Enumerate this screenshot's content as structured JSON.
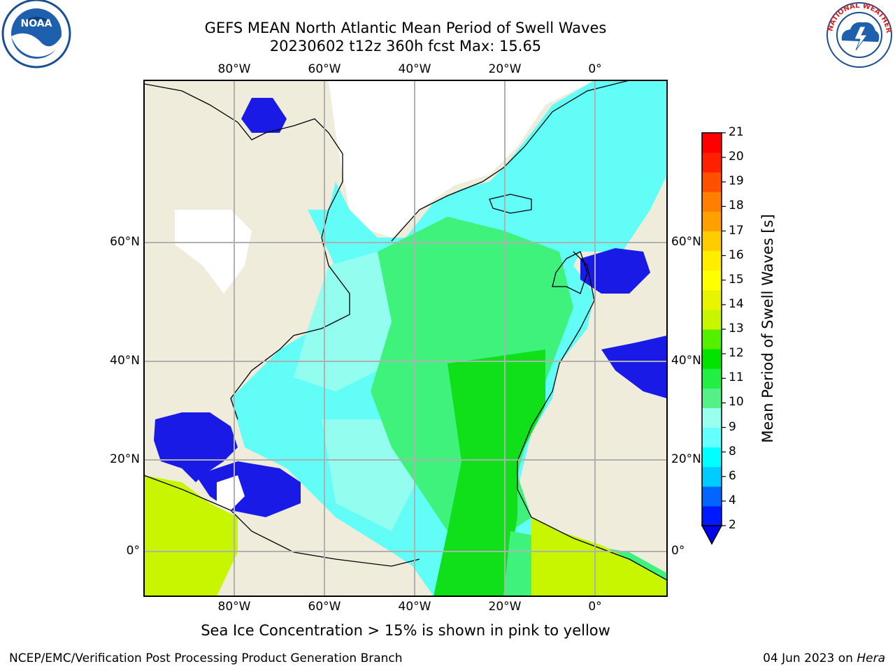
{
  "title": {
    "line1": "GEFS MEAN North Atlantic Mean Period of Swell Waves",
    "line2": "20230602 t12z 360h fcst   Max: 15.65"
  },
  "map": {
    "lon_labels": [
      {
        "value": -80,
        "text": "80°W"
      },
      {
        "value": -60,
        "text": "60°W"
      },
      {
        "value": -40,
        "text": "40°W"
      },
      {
        "value": -20,
        "text": "20°W"
      },
      {
        "value": 0,
        "text": "0°"
      }
    ],
    "lat_labels": [
      {
        "value": 60,
        "text": "60°N"
      },
      {
        "value": 40,
        "text": "40°N"
      },
      {
        "value": 20,
        "text": "20°N"
      },
      {
        "value": 0,
        "text": "0°"
      }
    ],
    "colors": {
      "land": "#efecdc",
      "ice": "#ffffff",
      "ocean_main": "#62fdf6",
      "ocean_light": "#93fdf0",
      "ocean_green": "#3ef27b",
      "ocean_bright_green": "#10e01a",
      "warm_land": "#c7f600",
      "deep_blue": "#1a1ae6"
    }
  },
  "colorbar": {
    "title": "Mean Period of Swell Waves [s]",
    "ticks": [
      "2",
      "4",
      "6",
      "8",
      "9",
      "10",
      "11",
      "12",
      "13",
      "14",
      "15",
      "16",
      "17",
      "18",
      "19",
      "20",
      "21"
    ],
    "colors": [
      "#0019ff",
      "#0066ff",
      "#00ccff",
      "#00ffff",
      "#66ffff",
      "#99ffee",
      "#55f088",
      "#22ee44",
      "#00e400",
      "#55ef00",
      "#c8f500",
      "#e8f500",
      "#ffff00",
      "#ffee00",
      "#ffcc00",
      "#ffa000",
      "#ff8000",
      "#ff5000",
      "#ff2000",
      "#ff0000"
    ],
    "extend_color": "#0000ee"
  },
  "footer": {
    "note": "Sea Ice Concentration > 15% is shown in pink to yellow",
    "credit_left": "NCEP/EMC/Verification Post Processing Product Generation Branch",
    "credit_date": "04 Jun 2023 on ",
    "credit_host": "Hera"
  },
  "logos": {
    "noaa_text": "NOAA",
    "nws_ring_text": "NATIONAL WEATHER SERVICE"
  }
}
